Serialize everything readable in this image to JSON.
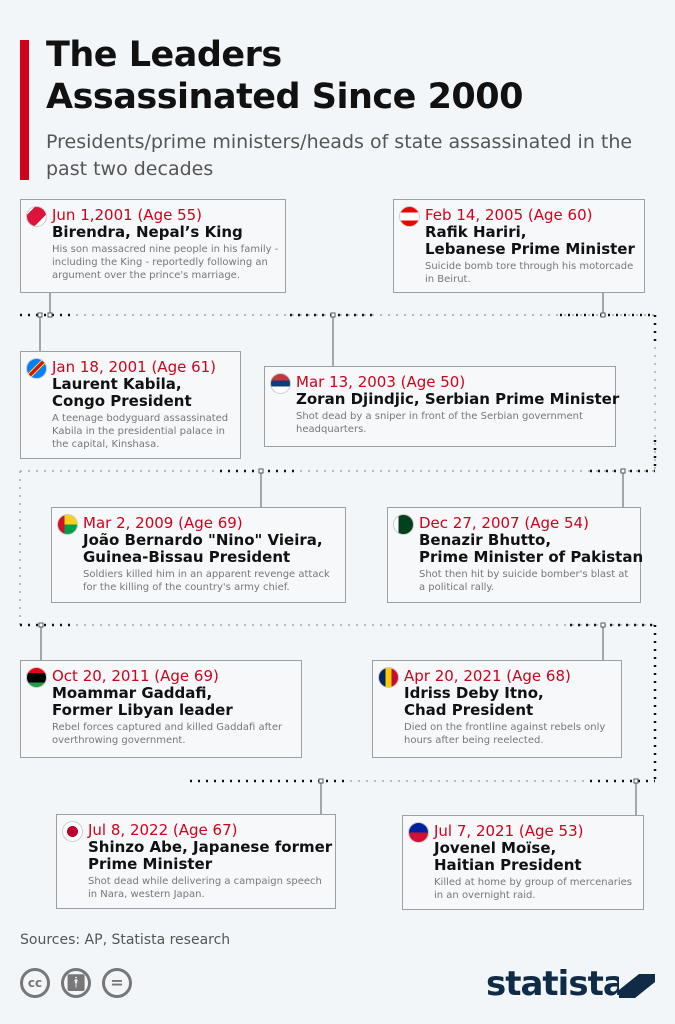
{
  "header": {
    "title_line1": "The Leaders",
    "title_line2": "Assassinated Since 2000",
    "subtitle": "Presidents/prime ministers/heads of state assassinated in the past two decades"
  },
  "colors": {
    "accent": "#d0021b",
    "text": "#111111",
    "muted": "#777777",
    "brand": "#0f2b46"
  },
  "cards": [
    {
      "flag": "nepal-flag-icon",
      "date": "Jun 1,2001 (Age 55)",
      "name1": "Birendra, Nepal’s King",
      "name2": "",
      "desc": "His son massacred nine people in his family - including the King - reportedly following an argument over the prince's marriage."
    },
    {
      "flag": "lebanon-flag-icon",
      "date": "Feb 14, 2005 (Age 60)",
      "name1": "Rafik Hariri,",
      "name2": "Lebanese Prime Minister",
      "desc": "Suicide bomb tore through his motorcade in Beirut."
    },
    {
      "flag": "congo-flag-icon",
      "date": "Jan 18, 2001 (Age 61)",
      "name1": "Laurent Kabila,",
      "name2": "Congo President",
      "desc": "A teenage bodyguard assassinated Kabila in the presidential palace in the capital, Kinshasa."
    },
    {
      "flag": "serbia-flag-icon",
      "date": "Mar 13, 2003 (Age 50)",
      "name1": "Zoran Djindjic, Serbian Prime Minister",
      "name2": "",
      "desc": "Shot dead by a sniper in front of the Serbian government headquarters."
    },
    {
      "flag": "guinea-bissau-flag-icon",
      "date": "Mar 2, 2009 (Age 69)",
      "name1": "João Bernardo \"Nino\" Vieira,",
      "name2": "Guinea-Bissau President",
      "desc": "Soldiers killed him in an apparent revenge attack for the killing of the country's army chief."
    },
    {
      "flag": "pakistan-flag-icon",
      "date": "Dec 27, 2007 (Age 54)",
      "name1": "Benazir Bhutto,",
      "name2": "Prime Minister of Pakistan",
      "desc": "Shot then hit by suicide bomber's blast at a political rally."
    },
    {
      "flag": "libya-flag-icon",
      "date": "Oct 20, 2011 (Age 69)",
      "name1": "Moammar Gaddafi,",
      "name2": "Former Libyan leader",
      "desc": "Rebel forces captured and killed Gaddafi after overthrowing government."
    },
    {
      "flag": "chad-flag-icon",
      "date": "Apr 20, 2021 (Age 68)",
      "name1": "Idriss Deby Itno,",
      "name2": "Chad President",
      "desc": "Died on the frontline against rebels only hours after being reelected."
    },
    {
      "flag": "japan-flag-icon",
      "date": "Jul 8, 2022 (Age 67)",
      "name1": "Shinzo Abe, Japanese former",
      "name2": "Prime Minister",
      "desc": "Shot dead while delivering a campaign speech in Nara, western Japan."
    },
    {
      "flag": "haiti-flag-icon",
      "date": "Jul 7, 2021 (Age 53)",
      "name1": "Jovenel Moïse,",
      "name2": "Haitian President",
      "desc": "Killed at home by group of mercenaries in an overnight raid."
    }
  ],
  "footer": {
    "source": "Sources: AP, Statista research",
    "cc": "cc",
    "eq": "=",
    "brand": "statista"
  }
}
